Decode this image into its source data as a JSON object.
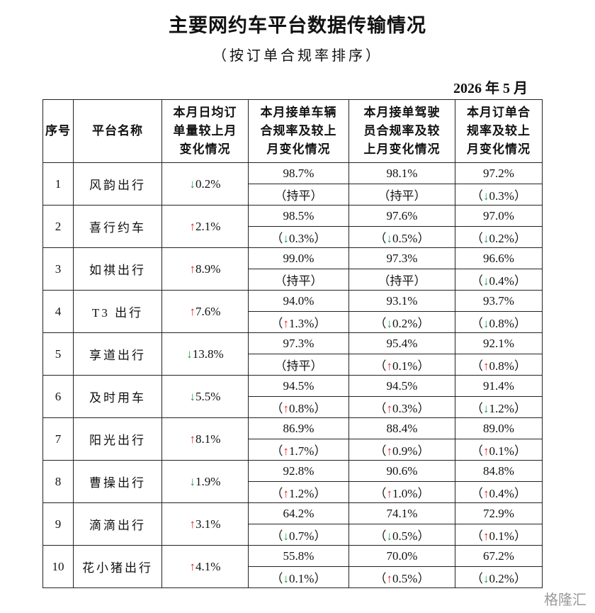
{
  "header": {
    "title": "主要网约车平台数据传输情况",
    "subtitle": "（按订单合规率排序）",
    "date": "2026 年 5 月"
  },
  "table": {
    "columns": [
      [
        "序号"
      ],
      [
        "平台名称"
      ],
      [
        "本月日均订",
        "单量较上月",
        "变化情况"
      ],
      [
        "本月接单车辆",
        "合规率及较上",
        "月变化情况"
      ],
      [
        "本月接单驾驶",
        "员合规率及较",
        "上月变化情况"
      ],
      [
        "本月订单合",
        "规率及较上",
        "月变化情况"
      ]
    ],
    "rows": [
      [
        "1",
        "风韵出行",
        "↓0.2%",
        "98.7%",
        "（持平）",
        "98.1%",
        "（持平）",
        "97.2%",
        "（↓0.3%）"
      ],
      [
        "2",
        "喜行约车",
        "↑2.1%",
        "98.5%",
        "（↓0.3%）",
        "97.6%",
        "（↓0.5%）",
        "97.0%",
        "（↓0.2%）"
      ],
      [
        "3",
        "如祺出行",
        "↑8.9%",
        "99.0%",
        "（持平）",
        "97.3%",
        "（持平）",
        "96.6%",
        "（↓0.4%）"
      ],
      [
        "4",
        "T3 出行",
        "↑7.6%",
        "94.0%",
        "（↑1.3%）",
        "93.1%",
        "（↓0.2%）",
        "93.7%",
        "（↓0.8%）"
      ],
      [
        "5",
        "享道出行",
        "↓13.8%",
        "97.3%",
        "（持平）",
        "95.4%",
        "（↑0.1%）",
        "92.1%",
        "（↑0.8%）"
      ],
      [
        "6",
        "及时用车",
        "↓5.5%",
        "94.5%",
        "（↑0.8%）",
        "94.5%",
        "（↑0.3%）",
        "91.4%",
        "（↓1.2%）"
      ],
      [
        "7",
        "阳光出行",
        "↑8.1%",
        "86.9%",
        "（↑1.7%）",
        "88.4%",
        "（↑0.9%）",
        "89.0%",
        "（↑0.1%）"
      ],
      [
        "8",
        "曹操出行",
        "↓1.9%",
        "92.8%",
        "（↑1.2%）",
        "90.6%",
        "（↑1.0%）",
        "84.8%",
        "（↑0.4%）"
      ],
      [
        "9",
        "滴滴出行",
        "↑3.1%",
        "64.2%",
        "（↓0.7%）",
        "74.1%",
        "（↓0.5%）",
        "72.9%",
        "（↑0.1%）"
      ],
      [
        "10",
        "花小猪出行",
        "↑4.1%",
        "55.8%",
        "（↓0.1%）",
        "70.0%",
        "（↑0.5%）",
        "67.2%",
        "（↓0.2%）"
      ]
    ]
  },
  "watermark": "格隆汇"
}
